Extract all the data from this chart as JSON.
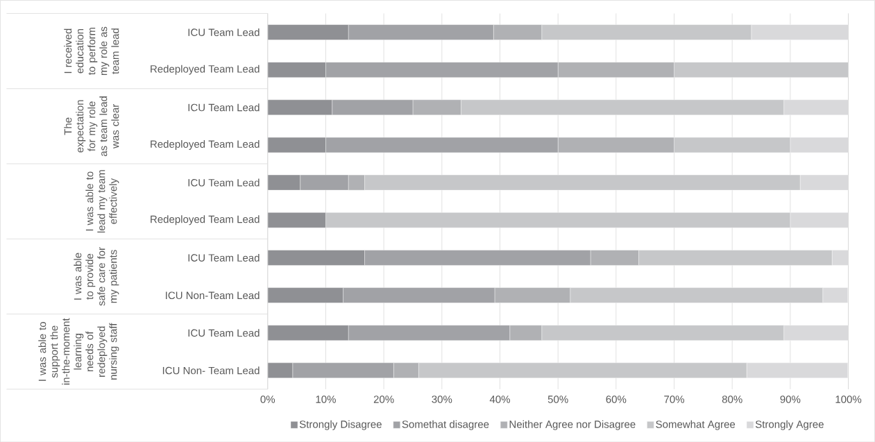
{
  "chart_data": {
    "type": "bar",
    "orientation": "horizontal",
    "stacked": true,
    "categories": [
      "ICU Team Lead",
      "Redeployed Team Lead",
      "ICU Team Lead",
      "Redeployed Team Lead",
      "ICU Team Lead",
      "Redeployed Team Lead",
      "ICU Team Lead",
      "ICU Non-Team Lead",
      "ICU Team Lead",
      "ICU Non- Team Lead"
    ],
    "series": [
      {
        "name": "Strongly Disagree",
        "color": "#8f9094",
        "values": [
          13.9,
          10,
          11.1,
          10,
          5.6,
          10,
          16.7,
          13.0,
          13.9,
          4.3
        ]
      },
      {
        "name": "Somethat disagree",
        "color": "#a1a2a6",
        "values": [
          25.0,
          40,
          13.9,
          40,
          8.3,
          0,
          38.9,
          26.1,
          27.8,
          17.4
        ]
      },
      {
        "name": "Neither Agree nor Disagree",
        "color": "#b0b1b4",
        "values": [
          8.3,
          20,
          8.3,
          20,
          2.8,
          0,
          8.3,
          13.0,
          5.5,
          4.3
        ]
      },
      {
        "name": "Somewhat Agree",
        "color": "#c6c7c9",
        "values": [
          36.1,
          30,
          55.6,
          20,
          75.0,
          80,
          33.3,
          43.5,
          41.7,
          56.5
        ]
      },
      {
        "name": "Strongly Agree",
        "color": "#d9d9db",
        "values": [
          16.7,
          0,
          11.1,
          10,
          8.3,
          10,
          2.8,
          4.3,
          11.1,
          17.4
        ]
      }
    ],
    "xlim": [
      0,
      100
    ],
    "xticks": [
      {
        "value": 0,
        "label": "0%"
      },
      {
        "value": 10,
        "label": "10%"
      },
      {
        "value": 20,
        "label": "20%"
      },
      {
        "value": 30,
        "label": "30%"
      },
      {
        "value": 40,
        "label": "40%"
      },
      {
        "value": 50,
        "label": "50%"
      },
      {
        "value": 60,
        "label": "60%"
      },
      {
        "value": 70,
        "label": "70%"
      },
      {
        "value": 80,
        "label": "80%"
      },
      {
        "value": 90,
        "label": "90%"
      },
      {
        "value": 100,
        "label": "100%"
      }
    ],
    "grid": "x",
    "legend": "bottom",
    "annotations": [
      "I received education to perform my role as team lead",
      "The expectation for my role as team lead was clear",
      "I was able to lead my team effectively",
      "I was able to provide safe care for my patients",
      "I was able to support the in-the-moment learning needs of redeployed nursing staff"
    ]
  }
}
